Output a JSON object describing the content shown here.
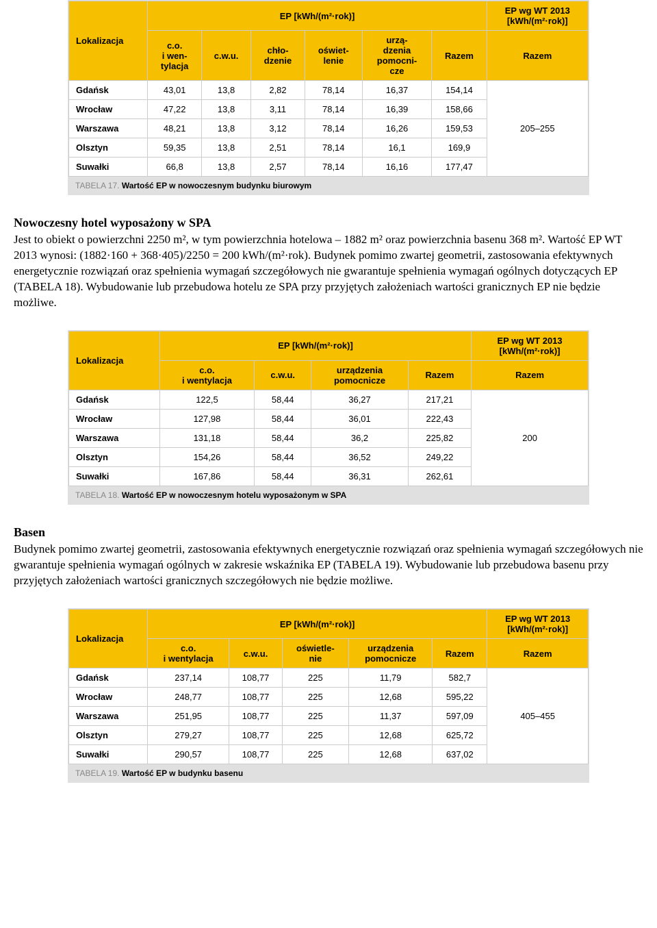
{
  "colors": {
    "header_bg": "#f6bf00",
    "border": "#cccccc",
    "caption_bg": "#e0e0e0",
    "caption_label": "#888888",
    "caption_text": "#000000"
  },
  "table17": {
    "top_header_loc": "Lokalizacja",
    "top_header_ep": "EP [kWh/(m²·rok)]",
    "top_header_wt_line1": "EP wg WT 2013",
    "top_header_wt_line2": "[kWh/(m²·rok)]",
    "sub_headers": [
      "c.o.\ni wen-\ntylacja",
      "c.w.u.",
      "chło-\ndzenie",
      "oświet-\nlenie",
      "urzą-\ndzenia\npomocni-\ncze",
      "Razem",
      "Razem"
    ],
    "rows": [
      {
        "loc": "Gdańsk",
        "v": [
          "43,01",
          "13,8",
          "2,82",
          "78,14",
          "16,37",
          "154,14"
        ]
      },
      {
        "loc": "Wrocław",
        "v": [
          "47,22",
          "13,8",
          "3,11",
          "78,14",
          "16,39",
          "158,66"
        ]
      },
      {
        "loc": "Warszawa",
        "v": [
          "48,21",
          "13,8",
          "3,12",
          "78,14",
          "16,26",
          "159,53"
        ]
      },
      {
        "loc": "Olsztyn",
        "v": [
          "59,35",
          "13,8",
          "2,51",
          "78,14",
          "16,1",
          "169,9"
        ]
      },
      {
        "loc": "Suwałki",
        "v": [
          "66,8",
          "13,8",
          "2,57",
          "78,14",
          "16,16",
          "177,47"
        ]
      }
    ],
    "wt_value": "205–255",
    "caption_label": "TABELA 17.",
    "caption_text": "Wartość EP w nowoczesnym budynku biurowym"
  },
  "section1": {
    "title": "Nowoczesny hotel wyposażony w SPA",
    "body_line1": "Jest to obiekt o powierzchni 2250 m², w tym powierzchnia hotelowa – 1882 m² oraz powierzchnia basenu 368 m². Wartość EP WT 2013 wynosi: (1882·160 + 368·405)/2250 = 200 kWh/(m²·rok). Budynek pomimo zwartej geometrii, zastosowania efektywnych energetycznie rozwiązań oraz spełnienia wymagań szczegółowych nie gwarantuje spełnienia wymagań ogólnych dotyczących EP (TABELA 18). Wybudowanie lub przebudowa hotelu ze SPA przy przyjętych założeniach wartości granicznych EP nie będzie możliwe."
  },
  "table18": {
    "top_header_loc": "Lokalizacja",
    "top_header_ep": "EP [kWh/(m²·rok)]",
    "top_header_wt_line1": "EP wg WT 2013",
    "top_header_wt_line2": "[kWh/(m²·rok)]",
    "sub_headers": [
      "c.o.\ni wentylacja",
      "c.w.u.",
      "urządzenia\npomocnicze",
      "Razem",
      "Razem"
    ],
    "rows": [
      {
        "loc": "Gdańsk",
        "v": [
          "122,5",
          "58,44",
          "36,27",
          "217,21"
        ]
      },
      {
        "loc": "Wrocław",
        "v": [
          "127,98",
          "58,44",
          "36,01",
          "222,43"
        ]
      },
      {
        "loc": "Warszawa",
        "v": [
          "131,18",
          "58,44",
          "36,2",
          "225,82"
        ]
      },
      {
        "loc": "Olsztyn",
        "v": [
          "154,26",
          "58,44",
          "36,52",
          "249,22"
        ]
      },
      {
        "loc": "Suwałki",
        "v": [
          "167,86",
          "58,44",
          "36,31",
          "262,61"
        ]
      }
    ],
    "wt_value": "200",
    "caption_label": "TABELA 18.",
    "caption_text": "Wartość EP w nowoczesnym hotelu wyposażonym w SPA"
  },
  "section2": {
    "title": "Basen",
    "body": "Budynek pomimo zwartej geometrii, zastosowania efektywnych energetycznie rozwiązań oraz spełnienia wymagań szczegółowych nie gwarantuje spełnienia wymagań ogólnych w zakresie wskaźnika EP (TABELA 19). Wybudowanie lub przebudowa basenu przy przyjętych założeniach wartości granicznych szczegółowych nie będzie możliwe."
  },
  "table19": {
    "top_header_loc": "Lokalizacja",
    "top_header_ep": "EP [kWh/(m²·rok)]",
    "top_header_wt_line1": "EP wg WT 2013",
    "top_header_wt_line2": "[kWh/(m²·rok)]",
    "sub_headers": [
      "c.o.\ni wentylacja",
      "c.w.u.",
      "oświetle-\nnie",
      "urządzenia\npomocnicze",
      "Razem",
      "Razem"
    ],
    "rows": [
      {
        "loc": "Gdańsk",
        "v": [
          "237,14",
          "108,77",
          "225",
          "11,79",
          "582,7"
        ]
      },
      {
        "loc": "Wrocław",
        "v": [
          "248,77",
          "108,77",
          "225",
          "12,68",
          "595,22"
        ]
      },
      {
        "loc": "Warszawa",
        "v": [
          "251,95",
          "108,77",
          "225",
          "11,37",
          "597,09"
        ]
      },
      {
        "loc": "Olsztyn",
        "v": [
          "279,27",
          "108,77",
          "225",
          "12,68",
          "625,72"
        ]
      },
      {
        "loc": "Suwałki",
        "v": [
          "290,57",
          "108,77",
          "225",
          "12,68",
          "637,02"
        ]
      }
    ],
    "wt_value": "405–455",
    "caption_label": "TABELA 19.",
    "caption_text": "Wartość EP w budynku basenu"
  }
}
